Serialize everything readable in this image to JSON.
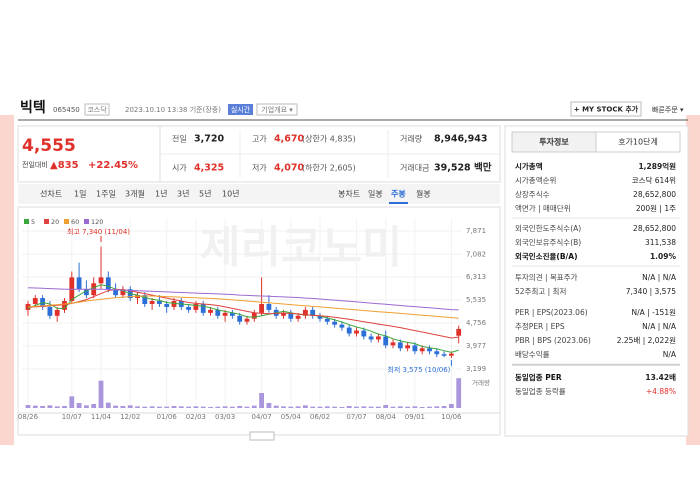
{
  "header": {
    "name": "빅텍",
    "code": "065450",
    "market": "코스닥",
    "timestamp": "2023.10.10 13:38 기준(장중)",
    "realtime": "실시간",
    "overview": "기업개요 ▾",
    "my_stock": "+ MY STOCK 추가",
    "quick_order": "빠른주문 ▾"
  },
  "watermark": "제리코노미",
  "quote": {
    "price": "4,555",
    "change_label": "전일대비",
    "change": "▲835",
    "change_pct": "+22.45%",
    "stats": [
      {
        "label": "전일",
        "value": "3,720"
      },
      {
        "label": "고가",
        "value": "4,670",
        "extra": "(상한가 4,835)"
      },
      {
        "label": "거래량",
        "value": "8,946,943"
      },
      {
        "label": "시가",
        "value": "4,325"
      },
      {
        "label": "저가",
        "value": "4,070",
        "extra": "(하한가 2,605)"
      },
      {
        "label": "거래대금",
        "value": "39,528 백만"
      }
    ]
  },
  "chart_tabs": {
    "line_label": "선차트",
    "line": [
      "1일",
      "1주일",
      "3개월",
      "1년",
      "3년",
      "5년",
      "10년"
    ],
    "candle_label": "봉차트",
    "candle": [
      "일봉",
      "주봉",
      "월봉"
    ]
  },
  "chart_data": {
    "type": "candlestick",
    "up_color": "#e0302a",
    "down_color": "#2c6fd6",
    "volume_color": "#a996dc",
    "categories": [
      "08/26",
      null,
      null,
      null,
      null,
      null,
      "10/07",
      null,
      null,
      null,
      "11/04",
      null,
      null,
      null,
      "12/02",
      null,
      null,
      null,
      null,
      "01/06",
      null,
      null,
      null,
      "02/03",
      null,
      null,
      null,
      "03/03",
      null,
      null,
      null,
      null,
      "04/07",
      null,
      null,
      null,
      "05/04",
      null,
      null,
      null,
      "06/02",
      null,
      null,
      null,
      null,
      "07/07",
      null,
      null,
      null,
      "08/04",
      null,
      null,
      null,
      "09/01",
      null,
      null,
      null,
      null,
      "10/06",
      null
    ],
    "open": [
      5200,
      5400,
      5600,
      5300,
      5000,
      5200,
      5500,
      6300,
      5900,
      5700,
      6100,
      6300,
      5900,
      5700,
      5900,
      5600,
      5700,
      5400,
      5500,
      5400,
      5300,
      5500,
      5300,
      5200,
      5400,
      5100,
      5200,
      5000,
      5100,
      5000,
      4800,
      4900,
      5100,
      5400,
      5200,
      5000,
      5100,
      4900,
      5000,
      5200,
      5000,
      4900,
      4800,
      4700,
      4600,
      4400,
      4500,
      4300,
      4200,
      4300,
      4000,
      4100,
      3900,
      4000,
      3800,
      3900,
      3800,
      3700,
      3650,
      4325
    ],
    "high": [
      5500,
      5700,
      5700,
      5500,
      5300,
      5600,
      6500,
      6800,
      6200,
      6300,
      7340,
      6500,
      6100,
      6000,
      6000,
      5800,
      5800,
      5600,
      5700,
      5500,
      5600,
      5600,
      5400,
      5500,
      5500,
      5300,
      5300,
      5200,
      5200,
      5100,
      5000,
      5200,
      6300,
      5700,
      5300,
      5200,
      5200,
      5100,
      5300,
      5300,
      5100,
      5000,
      4900,
      4800,
      4700,
      4600,
      4600,
      4400,
      4400,
      4500,
      4200,
      4200,
      4100,
      4100,
      4000,
      4000,
      3900,
      3800,
      3800,
      4670
    ],
    "low": [
      5000,
      5300,
      5200,
      4900,
      4800,
      5100,
      5400,
      5800,
      5600,
      5600,
      5900,
      5800,
      5600,
      5600,
      5500,
      5400,
      5300,
      5200,
      5300,
      5100,
      5200,
      5200,
      5100,
      5100,
      5000,
      5000,
      4900,
      4800,
      4900,
      4700,
      4700,
      4800,
      5000,
      5100,
      4900,
      4900,
      4800,
      4800,
      4900,
      4900,
      4800,
      4700,
      4600,
      4500,
      4300,
      4300,
      4200,
      4100,
      4100,
      3900,
      3900,
      3800,
      3800,
      3700,
      3700,
      3700,
      3600,
      3600,
      3575,
      4070
    ],
    "close": [
      5400,
      5600,
      5300,
      5000,
      5200,
      5500,
      6300,
      5900,
      5700,
      6100,
      6300,
      5900,
      5700,
      5900,
      5600,
      5700,
      5400,
      5500,
      5400,
      5300,
      5500,
      5300,
      5200,
      5400,
      5100,
      5200,
      5000,
      5100,
      5000,
      4800,
      4900,
      5100,
      5400,
      5200,
      5000,
      5100,
      4900,
      5000,
      5200,
      5000,
      4900,
      4800,
      4700,
      4600,
      4400,
      4500,
      4300,
      4200,
      4300,
      4000,
      4100,
      3900,
      4000,
      3800,
      3900,
      3800,
      3700,
      3650,
      3720,
      4555
    ],
    "volume": [
      900000,
      700000,
      600000,
      800000,
      500000,
      600000,
      3500000,
      1500000,
      800000,
      1200000,
      8200000,
      1600000,
      700000,
      600000,
      800000,
      500000,
      400000,
      500000,
      400000,
      400000,
      600000,
      500000,
      400000,
      500000,
      400000,
      300000,
      400000,
      500000,
      400000,
      600000,
      400000,
      700000,
      4500000,
      1500000,
      700000,
      500000,
      400000,
      500000,
      800000,
      400000,
      400000,
      500000,
      400000,
      300000,
      600000,
      400000,
      500000,
      400000,
      400000,
      900000,
      400000,
      500000,
      400000,
      500000,
      300000,
      400000,
      500000,
      600000,
      1200000,
      8946943
    ],
    "vlim": [
      0,
      9000000
    ],
    "ylim": [
      3199,
      7871
    ],
    "yticks": [
      {
        "value": 7871,
        "label": "7,871"
      },
      {
        "value": 7082,
        "label": "7,082"
      },
      {
        "value": 6313,
        "label": "6,313"
      },
      {
        "value": 5535,
        "label": "5,535"
      },
      {
        "value": 4756,
        "label": "4,756"
      },
      {
        "value": 3977,
        "label": "3,977"
      },
      {
        "value": 3199,
        "label": "3,199"
      }
    ],
    "series": [
      {
        "name": "5",
        "color": "#3aa63a",
        "values": [
          5250,
          5350,
          5450,
          5400,
          5250,
          5250,
          5550,
          5700,
          5850,
          5950,
          6050,
          6000,
          5900,
          5850,
          5750,
          5700,
          5620,
          5560,
          5520,
          5450,
          5420,
          5400,
          5380,
          5350,
          5330,
          5270,
          5200,
          5150,
          5100,
          5050,
          4970,
          4950,
          5000,
          5050,
          5100,
          5150,
          5100,
          5050,
          5030,
          5020,
          4990,
          4930,
          4860,
          4790,
          4700,
          4620,
          4560,
          4480,
          4380,
          4320,
          4220,
          4150,
          4100,
          4060,
          3960,
          3920,
          3880,
          3820,
          3760,
          3840
        ]
      },
      {
        "name": "20",
        "color": "#e04040",
        "values": [
          5300,
          5300,
          5320,
          5340,
          5360,
          5380,
          5420,
          5480,
          5550,
          5650,
          5750,
          5850,
          5900,
          5880,
          5850,
          5800,
          5750,
          5700,
          5650,
          5600,
          5550,
          5500,
          5450,
          5420,
          5400,
          5380,
          5350,
          5300,
          5250,
          5200,
          5150,
          5100,
          5080,
          5070,
          5080,
          5090,
          5080,
          5060,
          5040,
          5020,
          5000,
          4980,
          4950,
          4920,
          4880,
          4840,
          4800,
          4760,
          4720,
          4680,
          4640,
          4600,
          4550,
          4500,
          4450,
          4400,
          4350,
          4300,
          4250,
          4280
        ]
      },
      {
        "name": "60",
        "color": "#f0a030",
        "values": [
          5300,
          5320,
          5340,
          5360,
          5380,
          5400,
          5430,
          5460,
          5500,
          5530,
          5560,
          5590,
          5610,
          5630,
          5650,
          5660,
          5670,
          5670,
          5660,
          5650,
          5640,
          5630,
          5620,
          5610,
          5600,
          5590,
          5580,
          5560,
          5540,
          5520,
          5500,
          5480,
          5460,
          5440,
          5420,
          5400,
          5380,
          5360,
          5340,
          5320,
          5300,
          5280,
          5260,
          5240,
          5220,
          5200,
          5180,
          5160,
          5140,
          5120,
          5100,
          5080,
          5060,
          5040,
          5020,
          5000,
          4980,
          4960,
          4940,
          4920
        ]
      },
      {
        "name": "120",
        "color": "#9a6ad0",
        "values": [
          5950,
          5940,
          5930,
          5920,
          5910,
          5900,
          5900,
          5900,
          5900,
          5900,
          5900,
          5890,
          5880,
          5870,
          5860,
          5850,
          5840,
          5830,
          5820,
          5810,
          5800,
          5790,
          5780,
          5770,
          5760,
          5750,
          5740,
          5730,
          5720,
          5700,
          5690,
          5680,
          5670,
          5660,
          5650,
          5640,
          5630,
          5620,
          5600,
          5590,
          5570,
          5550,
          5530,
          5510,
          5490,
          5470,
          5450,
          5430,
          5410,
          5390,
          5370,
          5350,
          5330,
          5310,
          5290,
          5270,
          5250,
          5230,
          5210,
          5200
        ]
      }
    ],
    "annotations": [
      "최고 7,340 (11/04)",
      "최저 3,575 (10/06)"
    ],
    "volume_label": "거래량"
  },
  "invest": {
    "tabs": [
      "투자정보",
      "호가10단계"
    ],
    "rows": [
      [
        "시가총액",
        "1,289억원"
      ],
      [
        "시가총액순위",
        "코스닥 614위"
      ],
      [
        "상장주식수",
        "28,652,800"
      ],
      [
        "액면가 | 매매단위",
        "200원 | 1주"
      ],
      [
        "외국인한도주식수(A)",
        "28,652,800"
      ],
      [
        "외국인보유주식수(B)",
        "311,538"
      ],
      [
        "외국인소진율(B/A)",
        "1.09%"
      ],
      [
        "투자의견 | 목표주가",
        "N/A | N/A"
      ],
      [
        "52주최고 | 최저",
        "7,340 | 3,575"
      ],
      [
        "PER | EPS(2023.06)",
        "N/A | -151원"
      ],
      [
        "추정PER | EPS",
        "N/A | N/A"
      ],
      [
        "PBR | BPS (2023.06)",
        "2.25배 | 2,022원"
      ],
      [
        "배당수익률",
        "N/A"
      ],
      [
        "동일업종 PER",
        "13.42배"
      ],
      [
        "동일업종 등락률",
        "+4.88%"
      ]
    ]
  }
}
